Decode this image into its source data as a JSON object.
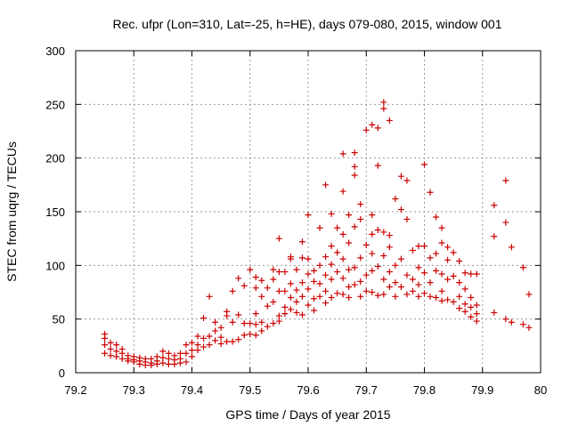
{
  "chart_data": {
    "type": "scatter",
    "title": "Rec. ufpr (Lon=310, Lat=-25, h=HE), days 079-080, 2015, window 001",
    "xlabel": "GPS time / Days of year 2015",
    "ylabel": "STEC from uqrg / TECUs",
    "xlim": [
      79.2,
      80.0
    ],
    "ylim": [
      0,
      300
    ],
    "xticks": [
      79.2,
      79.3,
      79.4,
      79.5,
      79.6,
      79.7,
      79.8,
      79.9,
      80.0
    ],
    "xtick_labels": [
      "79.2",
      "79.3",
      "79.4",
      "79.5",
      "79.6",
      "79.7",
      "79.8",
      "79.9",
      "80"
    ],
    "yticks": [
      0,
      50,
      100,
      150,
      200,
      250,
      300
    ],
    "ytick_labels": [
      "0",
      "50",
      "100",
      "150",
      "200",
      "250",
      "300"
    ],
    "grid": true,
    "marker": "+",
    "marker_color": "#cc0000",
    "series": [
      {
        "name": "STEC",
        "points": [
          [
            79.25,
            36
          ],
          [
            79.25,
            32
          ],
          [
            79.25,
            26
          ],
          [
            79.25,
            18
          ],
          [
            79.26,
            28
          ],
          [
            79.26,
            22
          ],
          [
            79.26,
            16
          ],
          [
            79.27,
            26
          ],
          [
            79.27,
            20
          ],
          [
            79.27,
            15
          ],
          [
            79.28,
            22
          ],
          [
            79.28,
            18
          ],
          [
            79.28,
            13
          ],
          [
            79.29,
            16
          ],
          [
            79.29,
            13
          ],
          [
            79.29,
            11
          ],
          [
            79.3,
            15
          ],
          [
            79.3,
            12
          ],
          [
            79.3,
            10
          ],
          [
            79.31,
            14
          ],
          [
            79.31,
            11
          ],
          [
            79.31,
            8
          ],
          [
            79.32,
            13
          ],
          [
            79.32,
            10
          ],
          [
            79.32,
            7
          ],
          [
            79.33,
            13
          ],
          [
            79.33,
            9
          ],
          [
            79.33,
            7
          ],
          [
            79.34,
            15
          ],
          [
            79.34,
            11
          ],
          [
            79.34,
            8
          ],
          [
            79.35,
            20
          ],
          [
            79.35,
            14
          ],
          [
            79.35,
            9
          ],
          [
            79.36,
            18
          ],
          [
            79.36,
            13
          ],
          [
            79.36,
            8
          ],
          [
            79.37,
            16
          ],
          [
            79.37,
            12
          ],
          [
            79.37,
            8
          ],
          [
            79.38,
            18
          ],
          [
            79.38,
            13
          ],
          [
            79.38,
            9
          ],
          [
            79.39,
            26
          ],
          [
            79.39,
            18
          ],
          [
            79.39,
            10
          ],
          [
            79.4,
            28
          ],
          [
            79.4,
            21
          ],
          [
            79.4,
            15
          ],
          [
            79.41,
            34
          ],
          [
            79.41,
            26
          ],
          [
            79.41,
            21
          ],
          [
            79.42,
            51
          ],
          [
            79.42,
            32
          ],
          [
            79.42,
            24
          ],
          [
            79.43,
            71
          ],
          [
            79.43,
            34
          ],
          [
            79.43,
            26
          ],
          [
            79.44,
            47
          ],
          [
            79.44,
            39
          ],
          [
            79.44,
            30
          ],
          [
            79.45,
            42
          ],
          [
            79.45,
            33
          ],
          [
            79.45,
            27
          ],
          [
            79.46,
            57
          ],
          [
            79.46,
            53
          ],
          [
            79.46,
            29
          ],
          [
            79.47,
            76
          ],
          [
            79.47,
            47
          ],
          [
            79.47,
            29
          ],
          [
            79.48,
            88
          ],
          [
            79.48,
            54
          ],
          [
            79.48,
            31
          ],
          [
            79.49,
            81
          ],
          [
            79.49,
            46
          ],
          [
            79.49,
            35
          ],
          [
            79.5,
            96
          ],
          [
            79.5,
            46
          ],
          [
            79.5,
            36
          ],
          [
            79.51,
            89
          ],
          [
            79.51,
            79
          ],
          [
            79.51,
            55
          ],
          [
            79.51,
            45
          ],
          [
            79.51,
            35
          ],
          [
            79.52,
            86
          ],
          [
            79.52,
            71
          ],
          [
            79.52,
            47
          ],
          [
            79.52,
            39
          ],
          [
            79.53,
            79
          ],
          [
            79.53,
            62
          ],
          [
            79.53,
            43
          ],
          [
            79.54,
            96
          ],
          [
            79.54,
            87
          ],
          [
            79.54,
            66
          ],
          [
            79.54,
            46
          ],
          [
            79.55,
            125
          ],
          [
            79.55,
            94
          ],
          [
            79.55,
            76
          ],
          [
            79.55,
            53
          ],
          [
            79.55,
            48
          ],
          [
            79.56,
            94
          ],
          [
            79.56,
            76
          ],
          [
            79.56,
            61
          ],
          [
            79.56,
            55
          ],
          [
            79.57,
            108
          ],
          [
            79.57,
            106
          ],
          [
            79.57,
            83
          ],
          [
            79.57,
            70
          ],
          [
            79.57,
            59
          ],
          [
            79.58,
            96
          ],
          [
            79.58,
            77
          ],
          [
            79.58,
            66
          ],
          [
            79.58,
            56
          ],
          [
            79.59,
            122
          ],
          [
            79.59,
            107
          ],
          [
            79.59,
            84
          ],
          [
            79.59,
            71
          ],
          [
            79.59,
            54
          ],
          [
            79.6,
            147
          ],
          [
            79.6,
            106
          ],
          [
            79.6,
            92
          ],
          [
            79.6,
            78
          ],
          [
            79.6,
            63
          ],
          [
            79.61,
            95
          ],
          [
            79.61,
            85
          ],
          [
            79.61,
            69
          ],
          [
            79.61,
            58
          ],
          [
            79.62,
            135
          ],
          [
            79.62,
            100
          ],
          [
            79.62,
            83
          ],
          [
            79.62,
            71
          ],
          [
            79.63,
            175
          ],
          [
            79.63,
            108
          ],
          [
            79.63,
            91
          ],
          [
            79.63,
            76
          ],
          [
            79.63,
            65
          ],
          [
            79.64,
            148
          ],
          [
            79.64,
            118
          ],
          [
            79.64,
            101
          ],
          [
            79.64,
            87
          ],
          [
            79.64,
            70
          ],
          [
            79.65,
            135
          ],
          [
            79.65,
            112
          ],
          [
            79.65,
            94
          ],
          [
            79.65,
            74
          ],
          [
            79.66,
            204
          ],
          [
            79.66,
            169
          ],
          [
            79.66,
            129
          ],
          [
            79.66,
            106
          ],
          [
            79.66,
            88
          ],
          [
            79.66,
            73
          ],
          [
            79.67,
            147
          ],
          [
            79.67,
            121
          ],
          [
            79.67,
            96
          ],
          [
            79.67,
            80
          ],
          [
            79.67,
            70
          ],
          [
            79.68,
            205
          ],
          [
            79.68,
            192
          ],
          [
            79.68,
            184
          ],
          [
            79.68,
            136
          ],
          [
            79.68,
            98
          ],
          [
            79.68,
            82
          ],
          [
            79.69,
            157
          ],
          [
            79.69,
            143
          ],
          [
            79.69,
            107
          ],
          [
            79.69,
            85
          ],
          [
            79.69,
            71
          ],
          [
            79.7,
            226
          ],
          [
            79.7,
            119
          ],
          [
            79.7,
            91
          ],
          [
            79.7,
            76
          ],
          [
            79.71,
            231
          ],
          [
            79.71,
            147
          ],
          [
            79.71,
            129
          ],
          [
            79.71,
            111
          ],
          [
            79.71,
            95
          ],
          [
            79.71,
            75
          ],
          [
            79.72,
            228
          ],
          [
            79.72,
            193
          ],
          [
            79.72,
            133
          ],
          [
            79.72,
            99
          ],
          [
            79.72,
            72
          ],
          [
            79.73,
            252
          ],
          [
            79.73,
            246
          ],
          [
            79.73,
            131
          ],
          [
            79.73,
            109
          ],
          [
            79.73,
            87
          ],
          [
            79.73,
            73
          ],
          [
            79.74,
            235
          ],
          [
            79.74,
            128
          ],
          [
            79.74,
            117
          ],
          [
            79.74,
            94
          ],
          [
            79.74,
            80
          ],
          [
            79.75,
            162
          ],
          [
            79.75,
            100
          ],
          [
            79.75,
            84
          ],
          [
            79.75,
            71
          ],
          [
            79.76,
            183
          ],
          [
            79.76,
            152
          ],
          [
            79.76,
            106
          ],
          [
            79.76,
            80
          ],
          [
            79.77,
            179
          ],
          [
            79.77,
            143
          ],
          [
            79.77,
            91
          ],
          [
            79.77,
            73
          ],
          [
            79.78,
            114
          ],
          [
            79.78,
            87
          ],
          [
            79.78,
            76
          ],
          [
            79.79,
            118
          ],
          [
            79.79,
            98
          ],
          [
            79.79,
            82
          ],
          [
            79.79,
            71
          ],
          [
            79.8,
            194
          ],
          [
            79.8,
            118
          ],
          [
            79.8,
            93
          ],
          [
            79.8,
            74
          ],
          [
            79.81,
            168
          ],
          [
            79.81,
            107
          ],
          [
            79.81,
            84
          ],
          [
            79.81,
            71
          ],
          [
            79.82,
            145
          ],
          [
            79.82,
            111
          ],
          [
            79.82,
            95
          ],
          [
            79.82,
            70
          ],
          [
            79.83,
            135
          ],
          [
            79.83,
            121
          ],
          [
            79.83,
            92
          ],
          [
            79.83,
            76
          ],
          [
            79.83,
            67
          ],
          [
            79.84,
            117
          ],
          [
            79.84,
            105
          ],
          [
            79.84,
            87
          ],
          [
            79.84,
            68
          ],
          [
            79.85,
            112
          ],
          [
            79.85,
            90
          ],
          [
            79.85,
            66
          ],
          [
            79.86,
            104
          ],
          [
            79.86,
            84
          ],
          [
            79.86,
            71
          ],
          [
            79.86,
            60
          ],
          [
            79.87,
            93
          ],
          [
            79.87,
            78
          ],
          [
            79.87,
            64
          ],
          [
            79.87,
            57
          ],
          [
            79.88,
            92
          ],
          [
            79.88,
            70
          ],
          [
            79.88,
            61
          ],
          [
            79.88,
            52
          ],
          [
            79.89,
            92
          ],
          [
            79.89,
            63
          ],
          [
            79.89,
            55
          ],
          [
            79.89,
            48
          ],
          [
            79.92,
            156
          ],
          [
            79.92,
            127
          ],
          [
            79.92,
            56
          ],
          [
            79.94,
            179
          ],
          [
            79.94,
            140
          ],
          [
            79.94,
            50
          ],
          [
            79.95,
            117
          ],
          [
            79.95,
            47
          ],
          [
            79.97,
            98
          ],
          [
            79.97,
            45
          ],
          [
            79.98,
            73
          ],
          [
            79.98,
            42
          ]
        ]
      }
    ]
  }
}
